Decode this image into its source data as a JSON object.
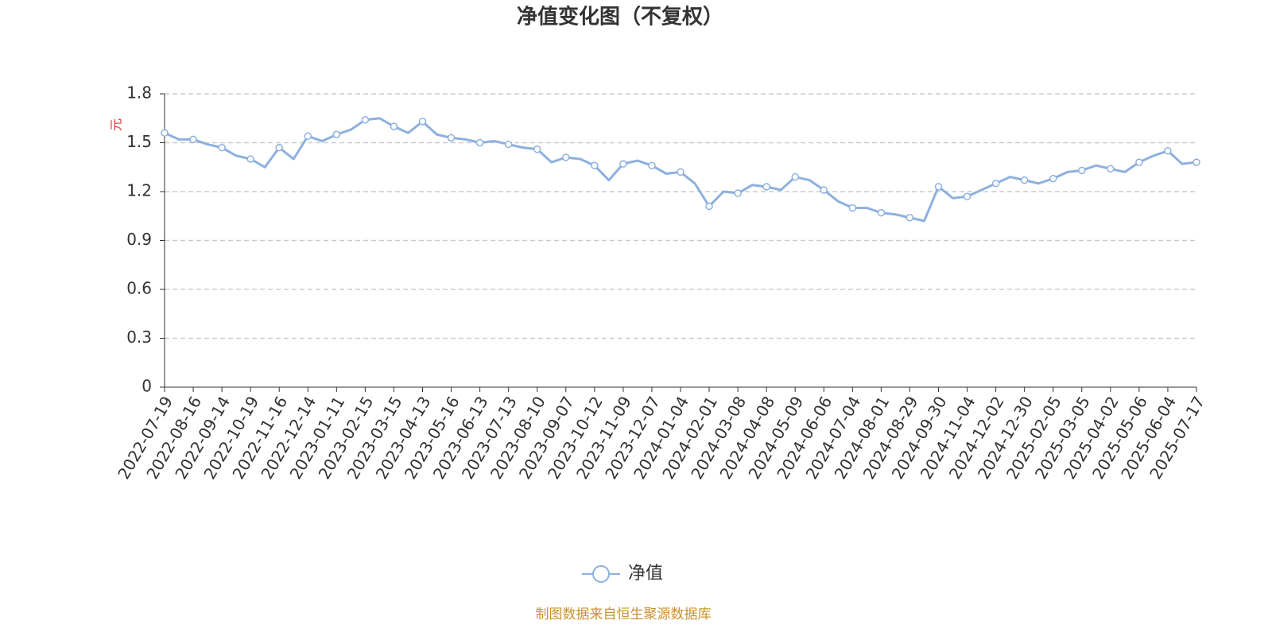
{
  "chart_data": {
    "type": "line",
    "title": "净值变化图（不复权）",
    "y_label": "元",
    "source": "制图数据来自恒生聚源数据库",
    "categories": [
      "2022-07-19",
      null,
      "2022-08-16",
      null,
      "2022-09-14",
      null,
      "2022-10-19",
      null,
      "2022-11-16",
      null,
      "2022-12-14",
      null,
      "2023-01-11",
      null,
      "2023-02-15",
      null,
      "2023-03-15",
      null,
      "2023-04-13",
      null,
      "2023-05-16",
      null,
      "2023-06-13",
      null,
      "2023-07-13",
      null,
      "2023-08-10",
      null,
      "2023-09-07",
      null,
      "2023-10-12",
      null,
      "2023-11-09",
      null,
      "2023-12-07",
      null,
      "2024-01-04",
      null,
      "2024-02-01",
      null,
      "2024-03-08",
      null,
      "2024-04-08",
      null,
      "2024-05-09",
      null,
      "2024-06-06",
      null,
      "2024-07-04",
      null,
      "2024-08-01",
      null,
      "2024-08-29",
      null,
      "2024-09-30",
      null,
      "2024-11-04",
      null,
      "2024-12-02",
      null,
      "2024-12-30",
      null,
      "2025-02-05",
      null,
      "2025-03-05",
      null,
      "2025-04-02",
      null,
      "2025-05-06",
      null,
      "2025-06-04",
      null,
      "2025-07-17"
    ],
    "series": [
      {
        "name": "净值",
        "color": "#8eb0de",
        "values": [
          1.56,
          1.52,
          1.52,
          1.49,
          1.47,
          1.42,
          1.4,
          1.35,
          1.47,
          1.4,
          1.54,
          1.51,
          1.55,
          1.58,
          1.64,
          1.65,
          1.6,
          1.56,
          1.63,
          1.55,
          1.53,
          1.52,
          1.5,
          1.51,
          1.49,
          1.47,
          1.46,
          1.38,
          1.41,
          1.4,
          1.36,
          1.27,
          1.37,
          1.39,
          1.36,
          1.31,
          1.32,
          1.25,
          1.11,
          1.2,
          1.19,
          1.24,
          1.23,
          1.21,
          1.29,
          1.27,
          1.21,
          1.14,
          1.1,
          1.1,
          1.07,
          1.06,
          1.04,
          1.02,
          1.23,
          1.16,
          1.17,
          1.21,
          1.25,
          1.29,
          1.27,
          1.25,
          1.28,
          1.32,
          1.33,
          1.36,
          1.34,
          1.32,
          1.38,
          1.42,
          1.45,
          1.37,
          1.38
        ]
      }
    ],
    "ylim": [
      0,
      1.8
    ],
    "yticks": [
      0,
      0.3,
      0.6,
      0.9,
      1.2,
      1.5,
      1.8
    ],
    "grid": true,
    "legend": "bottom"
  }
}
